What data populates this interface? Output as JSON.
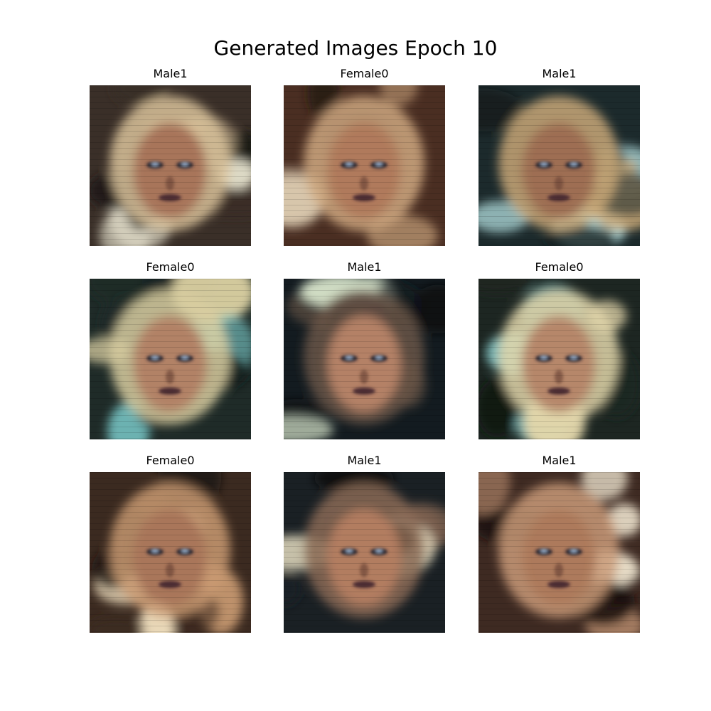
{
  "title": "Generated Images Epoch 10",
  "images": [
    {
      "label": "Male1",
      "palette": {
        "bg": "#3a2f28",
        "hair": "#d9c29a",
        "skin": "#a8755a",
        "accent": "#e8e4cf",
        "dark": "#1c1a18"
      }
    },
    {
      "label": "Female0",
      "palette": {
        "bg": "#4a2e22",
        "hair": "#cfa880",
        "skin": "#b07a5c",
        "accent": "#efe0c4",
        "dark": "#231712"
      }
    },
    {
      "label": "Male1",
      "palette": {
        "bg": "#1c2a2c",
        "hair": "#c9a878",
        "skin": "#9e6e52",
        "accent": "#bfeeee",
        "dark": "#0f1617"
      }
    },
    {
      "label": "Female0",
      "palette": {
        "bg": "#1f2b28",
        "hair": "#d8cda0",
        "skin": "#b28266",
        "accent": "#7ecfcf",
        "dark": "#121715"
      }
    },
    {
      "label": "Male1",
      "palette": {
        "bg": "#131b20",
        "hair": "#6a5548",
        "skin": "#b48166",
        "accent": "#d8e6cc",
        "dark": "#0b0f12"
      }
    },
    {
      "label": "Female0",
      "palette": {
        "bg": "#1d2622",
        "hair": "#e2d6aa",
        "skin": "#b6876a",
        "accent": "#8ad0d0",
        "dark": "#101413"
      }
    },
    {
      "label": "Female0",
      "palette": {
        "bg": "#3b2a20",
        "hair": "#c99a72",
        "skin": "#a9765a",
        "accent": "#e9d8b8",
        "dark": "#17110d"
      }
    },
    {
      "label": "Male1",
      "palette": {
        "bg": "#1a2024",
        "hair": "#8a6a55",
        "skin": "#b27d60",
        "accent": "#e4dcc0",
        "dark": "#0e1113"
      }
    },
    {
      "label": "Male1",
      "palette": {
        "bg": "#3e2a22",
        "hair": "#c99a78",
        "skin": "#ad7a5c",
        "accent": "#f0e6d0",
        "dark": "#1a110e"
      }
    }
  ]
}
